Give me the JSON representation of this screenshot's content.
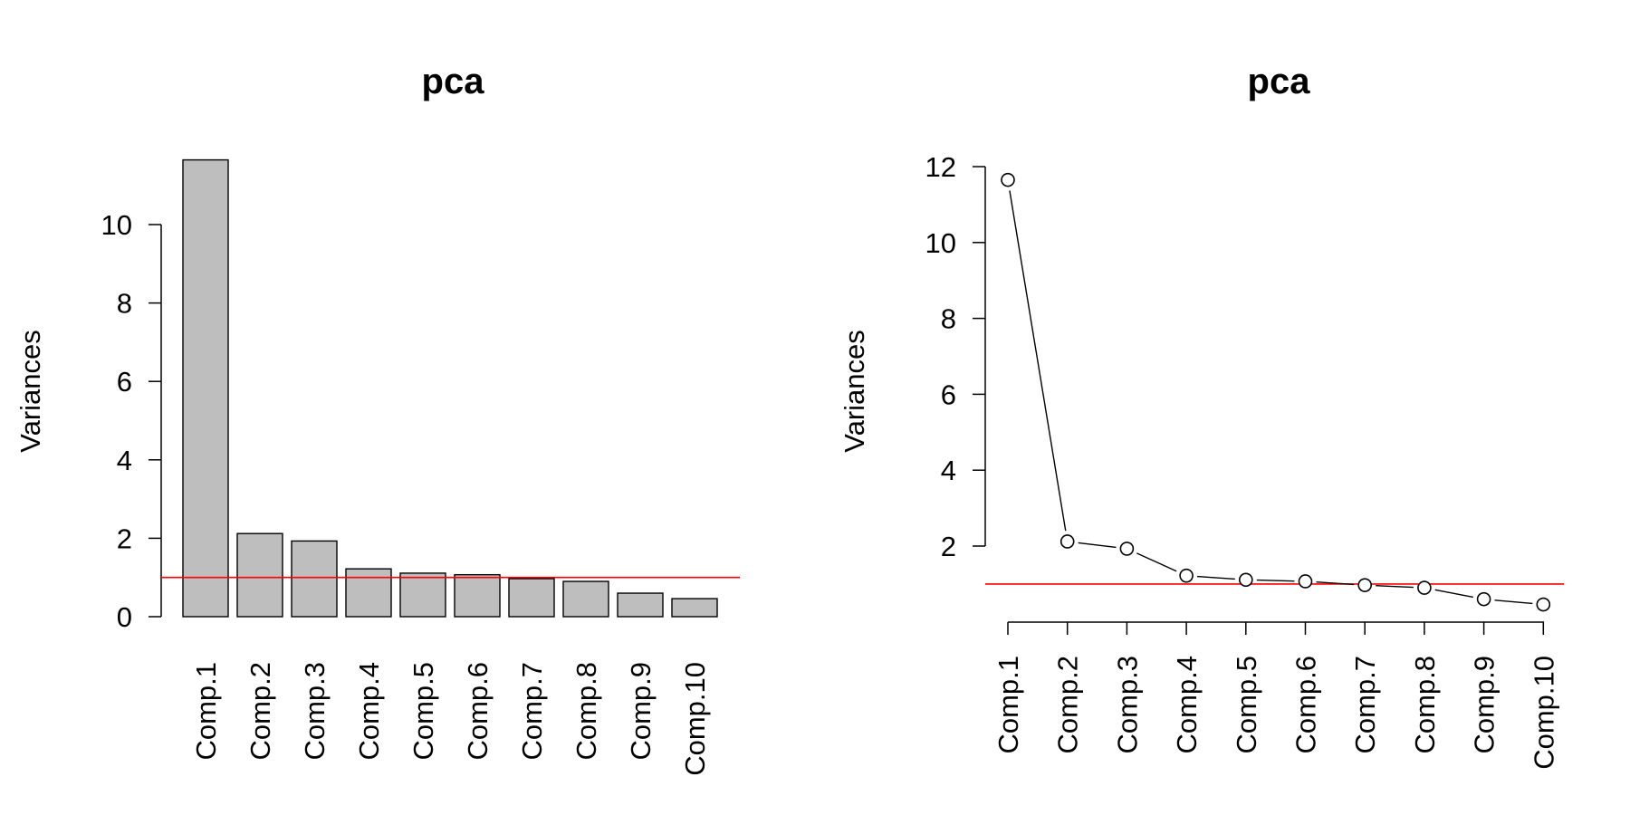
{
  "chart_data": [
    {
      "type": "bar",
      "title": "pca",
      "ylabel": "Variances",
      "xlabel": "",
      "categories": [
        "Comp.1",
        "Comp.2",
        "Comp.3",
        "Comp.4",
        "Comp.5",
        "Comp.6",
        "Comp.7",
        "Comp.8",
        "Comp.9",
        "Comp.10"
      ],
      "values": [
        11.65,
        2.12,
        1.93,
        1.22,
        1.11,
        1.07,
        0.97,
        0.9,
        0.6,
        0.46
      ],
      "y_ticks": [
        "0",
        "2",
        "4",
        "6",
        "8",
        "10"
      ],
      "ylim": [
        0,
        12.1
      ],
      "reference_line": {
        "y": 1,
        "color": "#ff0000"
      },
      "bar_fill": "#bebebe",
      "grid": false
    },
    {
      "type": "line",
      "title": "pca",
      "ylabel": "Variances",
      "xlabel": "",
      "categories": [
        "Comp.1",
        "Comp.2",
        "Comp.3",
        "Comp.4",
        "Comp.5",
        "Comp.6",
        "Comp.7",
        "Comp.8",
        "Comp.9",
        "Comp.10"
      ],
      "values": [
        11.65,
        2.12,
        1.93,
        1.22,
        1.11,
        1.07,
        0.97,
        0.9,
        0.6,
        0.46
      ],
      "y_ticks": [
        "2",
        "4",
        "6",
        "8",
        "10",
        "12"
      ],
      "ylim": [
        0.1,
        12.3
      ],
      "reference_line": {
        "y": 1,
        "color": "#ff0000"
      },
      "markers": "open-circle",
      "grid": false
    }
  ]
}
